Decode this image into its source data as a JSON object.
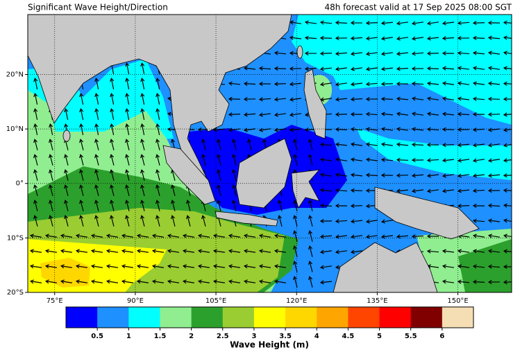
{
  "header": {
    "title": "Significant Wave Height/Direction",
    "valid": "48h forecast valid at 17 Sep 2025 08:00 SGT"
  },
  "map": {
    "lon_range": [
      70,
      160
    ],
    "lat_range": [
      -20,
      31
    ],
    "lon_ticks": [
      {
        "value": 75,
        "label": "75°E"
      },
      {
        "value": 90,
        "label": "90°E"
      },
      {
        "value": 105,
        "label": "105°E"
      },
      {
        "value": 120,
        "label": "120°E"
      },
      {
        "value": 135,
        "label": "135°E"
      },
      {
        "value": 150,
        "label": "150°E"
      }
    ],
    "lat_ticks": [
      {
        "value": 20,
        "label": "20°N"
      },
      {
        "value": 10,
        "label": "10°N"
      },
      {
        "value": 0,
        "label": "0°"
      },
      {
        "value": -10,
        "label": "10°S"
      },
      {
        "value": -20,
        "label": "20°S"
      }
    ]
  },
  "colorbar": {
    "label": "Wave Height (m)",
    "lim": [
      0,
      6.5
    ],
    "colors": [
      "#0000ff",
      "#1e90ff",
      "#00ffff",
      "#90ee90",
      "#2ca02c",
      "#9acd32",
      "#ffff00",
      "#ffd700",
      "#ffa500",
      "#ff4500",
      "#ff0000",
      "#800000",
      "#f5deb3"
    ],
    "ticks": [
      0.5,
      1,
      1.5,
      2,
      2.5,
      3,
      3.5,
      4,
      4.5,
      5,
      5.5,
      6
    ]
  }
}
